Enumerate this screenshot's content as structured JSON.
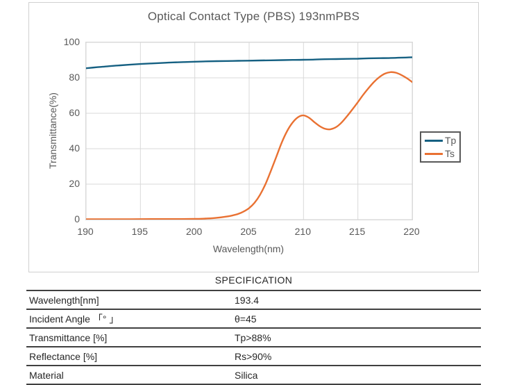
{
  "chart_data": {
    "type": "line",
    "title": "Optical Contact Type (PBS) 193nmPBS",
    "xlabel": "Wavelength(nm)",
    "ylabel": "Transmittance(%)",
    "xlim": [
      190,
      220
    ],
    "ylim": [
      0,
      100
    ],
    "x_ticks": [
      190,
      195,
      200,
      205,
      210,
      215,
      220
    ],
    "y_ticks": [
      0,
      20,
      40,
      60,
      80,
      100
    ],
    "grid": true,
    "legend_position": "right-outside",
    "grid_color": "#D9D9D9",
    "axis_text_color": "#595959",
    "series": [
      {
        "name": "Tp",
        "color": "#156082",
        "x": [
          190,
          191,
          192,
          193,
          194,
          195,
          196,
          197,
          198,
          199,
          200,
          201,
          202,
          203,
          204,
          205,
          206,
          207,
          208,
          209,
          210,
          211,
          212,
          213,
          214,
          215,
          216,
          217,
          218,
          219,
          220
        ],
        "y": [
          85.4,
          86.0,
          86.5,
          87.0,
          87.4,
          87.8,
          88.1,
          88.4,
          88.7,
          88.9,
          89.1,
          89.3,
          89.4,
          89.5,
          89.6,
          89.7,
          89.8,
          89.9,
          90.0,
          90.1,
          90.2,
          90.3,
          90.5,
          90.6,
          90.7,
          90.8,
          91.0,
          91.1,
          91.2,
          91.4,
          91.6
        ]
      },
      {
        "name": "Ts",
        "color": "#E97132",
        "x": [
          190,
          192,
          194,
          196,
          198,
          200,
          201,
          202,
          203,
          203.5,
          204,
          204.5,
          205,
          205.5,
          206,
          206.5,
          207,
          207.5,
          208,
          208.5,
          209,
          209.5,
          210,
          210.5,
          211,
          211.5,
          212,
          212.5,
          213,
          213.5,
          214,
          214.5,
          215,
          215.5,
          216,
          216.5,
          217,
          217.5,
          218,
          218.5,
          219,
          219.5,
          220
        ],
        "y": [
          0.2,
          0.2,
          0.2,
          0.3,
          0.3,
          0.4,
          0.6,
          1.0,
          1.8,
          2.4,
          3.2,
          4.6,
          6.5,
          9.5,
          14.0,
          20.0,
          27.5,
          35.5,
          43.5,
          50.0,
          54.8,
          57.8,
          58.8,
          57.5,
          55.0,
          52.7,
          51.2,
          51.0,
          52.2,
          54.8,
          58.3,
          62.2,
          66.3,
          70.5,
          74.3,
          77.8,
          80.5,
          82.4,
          83.2,
          82.9,
          81.6,
          79.8,
          77.6
        ]
      }
    ]
  },
  "spec": {
    "title": "SPECIFICATION",
    "rows": [
      {
        "label": "Wavelength[nm]",
        "value": "193.4"
      },
      {
        "label": "Incident Angle 「° 」",
        "value": "θ=45"
      },
      {
        "label": "Transmittance [%]",
        "value": "Tp>88%"
      },
      {
        "label": "Reflectance [%]",
        "value": "Rs>90%"
      },
      {
        "label": "Material",
        "value": "Silica"
      }
    ]
  }
}
